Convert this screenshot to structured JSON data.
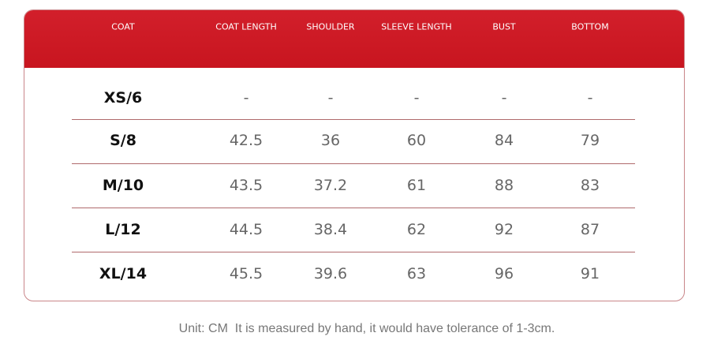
{
  "table": {
    "header": [
      "COAT",
      "COAT LENGTH",
      "SHOULDER",
      "SLEEVE LENGTH",
      "BUST",
      "BOTTOM"
    ],
    "rows": [
      [
        "XS/6",
        "-",
        "-",
        "-",
        "-",
        "-"
      ],
      [
        "S/8",
        "42.5",
        "36",
        "60",
        "84",
        "79"
      ],
      [
        "M/10",
        "43.5",
        "37.2",
        "61",
        "88",
        "83"
      ],
      [
        "L/12",
        "44.5",
        "38.4",
        "62",
        "92",
        "87"
      ],
      [
        "XL/14",
        "45.5",
        "39.6",
        "63",
        "96",
        "91"
      ]
    ]
  },
  "footer": {
    "note": "Unit: CM  It is measured by hand, it would have tolerance of 1-3cm."
  }
}
